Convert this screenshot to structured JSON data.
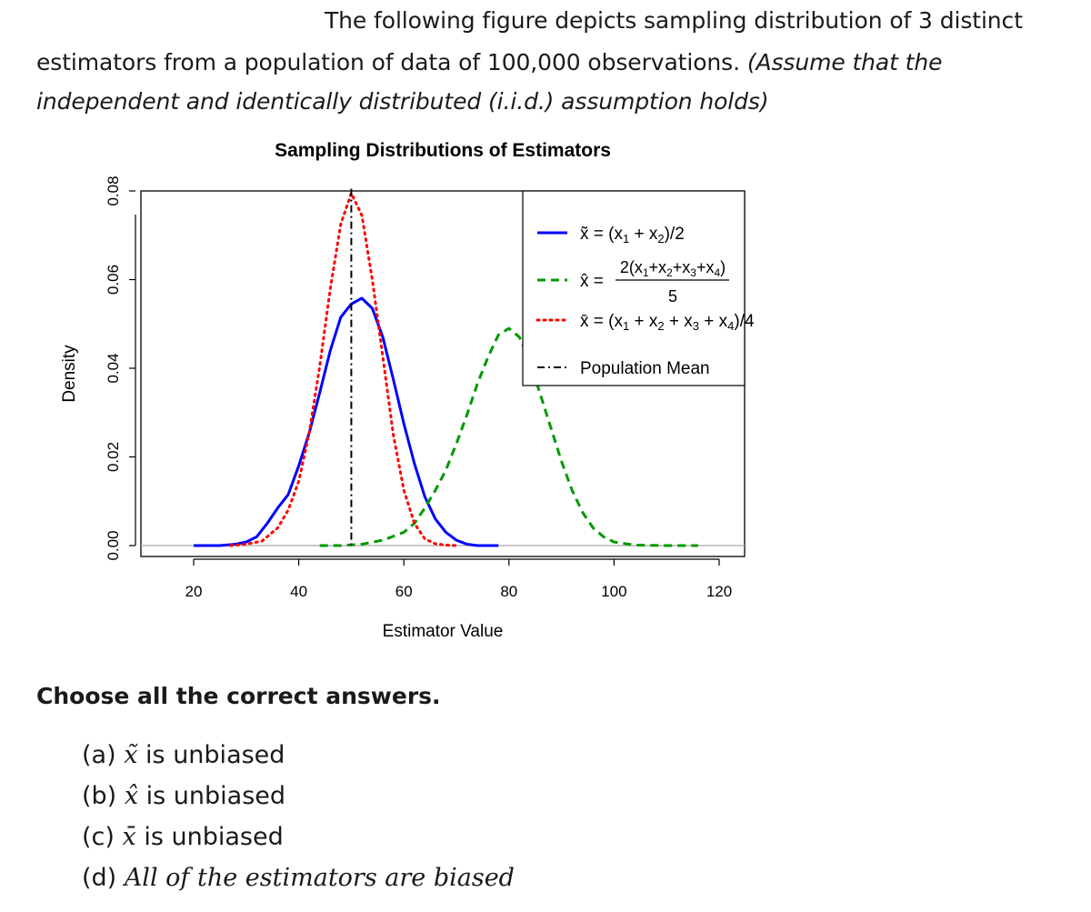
{
  "question": {
    "line1": "The following figure depicts sampling distribution of 3 distinct",
    "line2": "estimators from a population of data of 100,000 observations.",
    "line2_italic": "(Assume that the",
    "line3_italic": "independent and identically distributed (i.i.d.) assumption holds)"
  },
  "chart_data": {
    "type": "line",
    "title": "Sampling Distributions of Estimators",
    "xlabel": "Estimator Value",
    "ylabel": "Density",
    "xlim": [
      10,
      125
    ],
    "ylim": [
      0,
      0.08
    ],
    "x_ticks": [
      "20",
      "40",
      "60",
      "80",
      "100",
      "120"
    ],
    "y_ticks": [
      "0.00",
      "0.02",
      "0.04",
      "0.06",
      "0.08"
    ],
    "grid": false,
    "legend_position": "top-right",
    "series": [
      {
        "name": "x̃ = (x1 + x2)/2",
        "color": "#0000ff",
        "style": "solid",
        "x": [
          20,
          25,
          28,
          30,
          32,
          34,
          36,
          38,
          40,
          42,
          44,
          46,
          48,
          50,
          52,
          54,
          56,
          58,
          60,
          62,
          64,
          66,
          68,
          70,
          72,
          74,
          78
        ],
        "y": [
          0.0,
          0.0,
          0.0003,
          0.0008,
          0.002,
          0.005,
          0.0085,
          0.0115,
          0.018,
          0.0255,
          0.0345,
          0.044,
          0.0515,
          0.0545,
          0.0558,
          0.0535,
          0.047,
          0.0375,
          0.0275,
          0.0185,
          0.011,
          0.006,
          0.003,
          0.0012,
          0.0003,
          0.0,
          0.0
        ]
      },
      {
        "name": "x̂ = 2(x1 + x2 + x3 + x4)/5",
        "color": "#009900",
        "style": "dashed",
        "x": [
          44,
          48,
          52,
          56,
          60,
          62,
          64,
          66,
          68,
          70,
          72,
          74,
          76,
          78,
          80,
          82,
          84,
          86,
          88,
          90,
          92,
          94,
          96,
          98,
          100,
          104,
          110,
          116
        ],
        "y": [
          0.0,
          0.0,
          0.0003,
          0.0012,
          0.003,
          0.005,
          0.0085,
          0.0125,
          0.017,
          0.023,
          0.0295,
          0.0365,
          0.0425,
          0.0475,
          0.049,
          0.047,
          0.0415,
          0.034,
          0.0265,
          0.019,
          0.0125,
          0.0075,
          0.004,
          0.002,
          0.0008,
          0.0001,
          0.0,
          0.0
        ]
      },
      {
        "name": "x̄ = (x1 + x2 + x3 + x4)/4",
        "color": "#ff0000",
        "style": "dotted",
        "x": [
          27,
          30,
          33,
          36,
          38,
          40,
          42,
          44,
          46,
          48,
          50,
          52,
          54,
          56,
          58,
          60,
          62,
          64,
          66,
          68,
          70
        ],
        "y": [
          0.0,
          0.0003,
          0.001,
          0.004,
          0.008,
          0.0145,
          0.0255,
          0.0405,
          0.058,
          0.0725,
          0.0795,
          0.0745,
          0.06,
          0.0425,
          0.025,
          0.0125,
          0.005,
          0.0015,
          0.0004,
          0.0001,
          0.0
        ]
      },
      {
        "name": "Population Mean",
        "color": "#000000",
        "style": "dotdash",
        "vline_x": 50
      }
    ]
  },
  "prompt": "Choose all the correct answers.",
  "options": [
    {
      "label": "(a)",
      "symbol": "x̃",
      "text": "is unbiased"
    },
    {
      "label": "(b)",
      "symbol": "x̂",
      "text": "is unbiased"
    },
    {
      "label": "(c)",
      "symbol": "x̄",
      "text": "is unbiased"
    },
    {
      "label": "(d)",
      "text": "All of the estimators are biased"
    }
  ]
}
